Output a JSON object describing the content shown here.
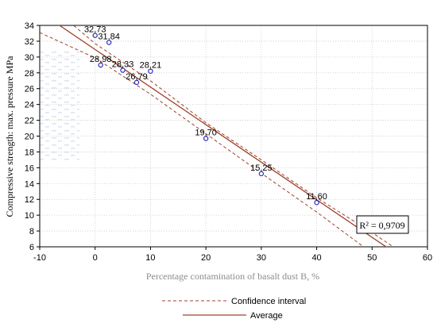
{
  "chart_data": {
    "type": "scatter",
    "xlabel": "Percentage contamination of basalt dust B, %",
    "ylabel": "Compressive strength: max. pressure MPa",
    "xlim": [
      -10,
      60
    ],
    "ylim": [
      6,
      34
    ],
    "xticks": [
      -10,
      0,
      10,
      20,
      30,
      40,
      50,
      60
    ],
    "yticks": [
      6,
      8,
      10,
      12,
      14,
      16,
      18,
      20,
      22,
      24,
      26,
      28,
      30,
      32,
      34
    ],
    "xtick_labels": [
      "-10",
      "0",
      "10",
      "20",
      "30",
      "40",
      "50",
      "60"
    ],
    "ytick_labels": [
      "6",
      "8",
      "10",
      "12",
      "14",
      "16",
      "18",
      "20",
      "22",
      "24",
      "26",
      "28",
      "30",
      "32",
      "34"
    ],
    "points": [
      {
        "x": 0,
        "y": 32.73,
        "label": "32,73"
      },
      {
        "x": 2.5,
        "y": 31.84,
        "label": "31,84"
      },
      {
        "x": 1,
        "y": 28.98,
        "label": "28,98"
      },
      {
        "x": 5,
        "y": 28.33,
        "label": "28,33"
      },
      {
        "x": 7.5,
        "y": 26.79,
        "label": "26,79"
      },
      {
        "x": 10,
        "y": 28.21,
        "label": "28,21"
      },
      {
        "x": 20,
        "y": 19.7,
        "label": "19,70"
      },
      {
        "x": 30,
        "y": 15.25,
        "label": "15,25"
      },
      {
        "x": 40,
        "y": 11.6,
        "label": "11,60"
      }
    ],
    "regression": {
      "intercept": 30.95,
      "slope": -0.475
    },
    "confidence_band": [
      {
        "x": -10,
        "upper": 37.6,
        "lower": 33.1
      },
      {
        "x": 0,
        "upper": 31.7,
        "lower": 29.9
      },
      {
        "x": 10,
        "upper": 27.0,
        "lower": 25.3
      },
      {
        "x": 20,
        "upper": 21.7,
        "lower": 20.3
      },
      {
        "x": 30,
        "upper": 17.0,
        "lower": 15.3
      },
      {
        "x": 40,
        "upper": 12.2,
        "lower": 10.4
      },
      {
        "x": 50,
        "upper": 7.8,
        "lower": 5.2
      },
      {
        "x": 60,
        "upper": 3.1,
        "lower": 0.1
      }
    ],
    "r2_text": "R² = 0,9709",
    "legend": [
      {
        "label": "Confidence interval",
        "style": "dashed"
      },
      {
        "label": "Average",
        "style": "solid"
      }
    ],
    "colors": {
      "line": "#a0402a",
      "point": "#2a2ab8",
      "grid": "#c8c8c8",
      "speckle": "#d8e4f2"
    }
  }
}
